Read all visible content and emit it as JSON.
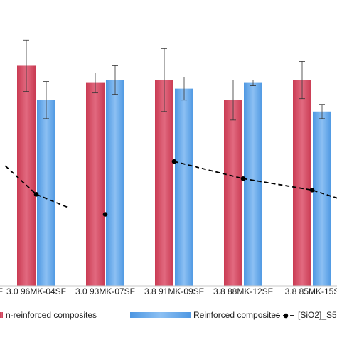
{
  "chart_data": {
    "type": "bar",
    "categories": [
      "3.0 96MK-04SF",
      "3.0 93MK-07SF",
      "3.8 91MK-09SF",
      "3.8 88MK-12SF",
      "3.8 85MK-15S"
    ],
    "left_partial_category": "F",
    "y_unit_note": "estimated relative to plot height (0-100)",
    "ylim": [
      0,
      100
    ],
    "grid": false,
    "legend_position": "bottom",
    "series": [
      {
        "name": "n-reinforced composites",
        "color": "#d9435a",
        "color_light": "#e87a8e",
        "values": [
          77,
          71,
          72,
          65,
          72
        ],
        "errors": [
          9,
          3.5,
          11,
          7,
          6.5
        ]
      },
      {
        "name": "Reinforced composites",
        "color": "#5aa3ea",
        "color_light": "#8fc2f2",
        "values": [
          65,
          72,
          69,
          71,
          61
        ],
        "errors": [
          6.5,
          5,
          4,
          1,
          2.5
        ]
      }
    ],
    "line_series": {
      "name": "[SiO2]_S5",
      "color": "#000000",
      "dashed": true,
      "segments": [
        [
          [
            -0.45,
            42
          ],
          [
            0,
            32
          ],
          [
            0.45,
            27.5
          ]
        ],
        [
          [
            1,
            25
          ]
        ],
        [
          [
            2,
            43.5
          ],
          [
            3,
            37.5
          ],
          [
            4,
            33.5
          ],
          [
            4.45,
            30
          ]
        ]
      ]
    }
  }
}
